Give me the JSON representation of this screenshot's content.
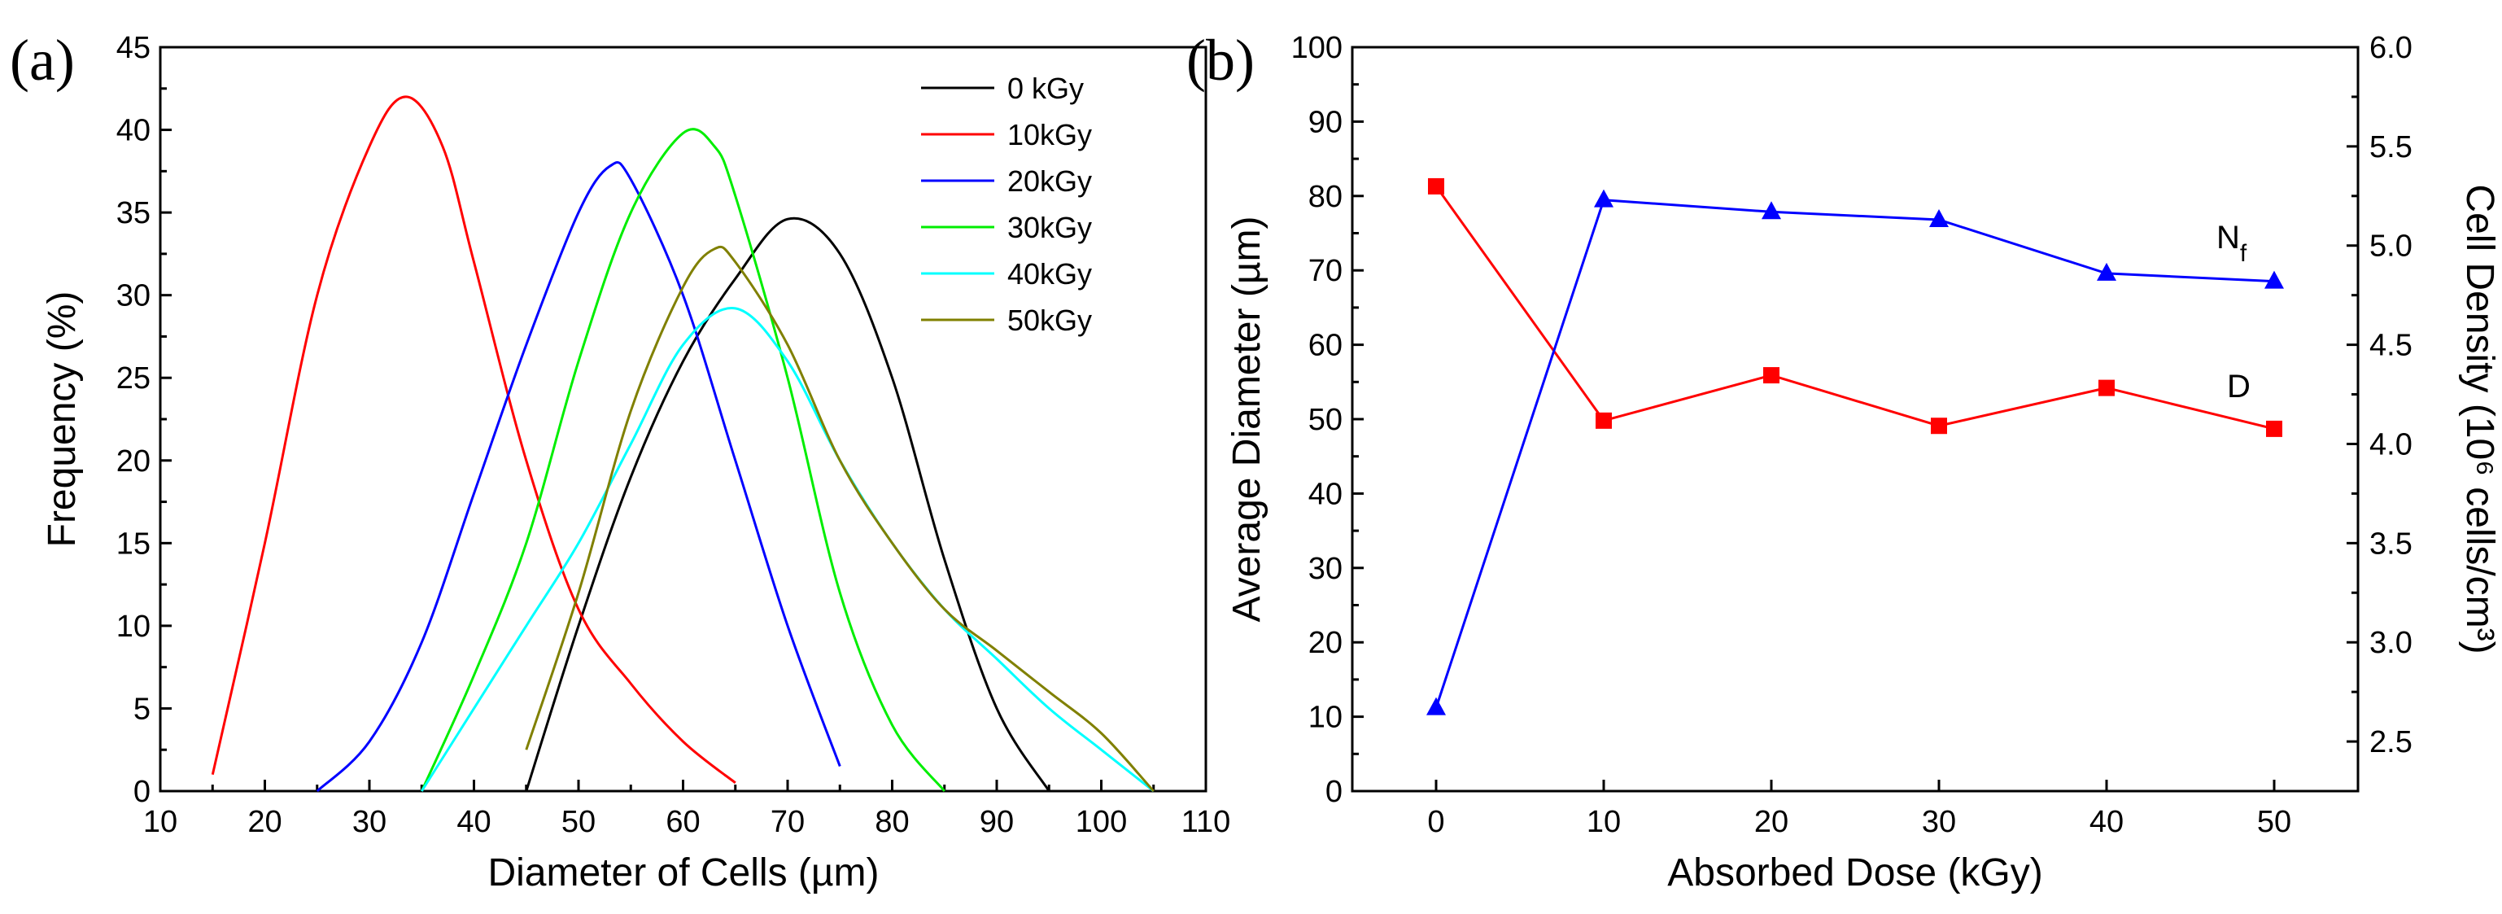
{
  "chart_data": [
    {
      "type": "line",
      "panel": "(a)",
      "xlabel": "Diameter of Cells (µm)",
      "ylabel": "Frequency (%)",
      "xlim": [
        10,
        110
      ],
      "ylim": [
        0,
        45
      ],
      "xticks": [
        "10",
        "20",
        "30",
        "40",
        "50",
        "60",
        "70",
        "80",
        "90",
        "100",
        "110"
      ],
      "yticks": [
        "0",
        "5",
        "10",
        "15",
        "20",
        "25",
        "30",
        "35",
        "40",
        "45"
      ],
      "grid": false,
      "legend_position": "top-right",
      "series": [
        {
          "name": "0 kGy",
          "color": "#000000",
          "x": [
            45,
            50,
            55,
            60,
            65,
            70,
            75,
            80,
            85,
            90,
            95
          ],
          "y": [
            0,
            10,
            19,
            26,
            31,
            34.6,
            32.5,
            25,
            14,
            5,
            0
          ]
        },
        {
          "name": "10kGy",
          "color": "#ff0000",
          "x": [
            15,
            20,
            25,
            30,
            33.5,
            37,
            40,
            45,
            50,
            55,
            60,
            65
          ],
          "y": [
            1,
            15,
            30,
            39,
            42,
            39,
            32,
            20,
            11,
            6.5,
            3,
            0.5
          ]
        },
        {
          "name": "20kGy",
          "color": "#0000ff",
          "x": [
            25,
            30,
            35,
            40,
            45,
            50,
            53,
            55,
            60,
            65,
            70,
            75
          ],
          "y": [
            0,
            3,
            9,
            18,
            27,
            35,
            37.8,
            37,
            30,
            20,
            10,
            1.5
          ]
        },
        {
          "name": "30kGy",
          "color": "#00ee00",
          "x": [
            35,
            40,
            45,
            50,
            55,
            60,
            63,
            65,
            70,
            75,
            80,
            85
          ],
          "y": [
            0,
            7,
            15,
            26,
            35,
            39.8,
            39,
            36,
            25,
            12,
            4,
            0
          ]
        },
        {
          "name": "40kGy",
          "color": "#00ffff",
          "x": [
            35,
            40,
            45,
            50,
            55,
            60,
            65,
            70,
            75,
            80,
            85,
            90,
            95,
            100,
            105
          ],
          "y": [
            0,
            5,
            10,
            15,
            21,
            27,
            29.2,
            26,
            20,
            15,
            11,
            8,
            5,
            2.5,
            0
          ]
        },
        {
          "name": "50kGy",
          "color": "#808000",
          "x": [
            45,
            50,
            55,
            60,
            63,
            65,
            70,
            75,
            80,
            85,
            90,
            95,
            100,
            105
          ],
          "y": [
            2.5,
            12,
            23,
            30.5,
            32.8,
            32,
            27,
            20,
            15,
            11,
            8.5,
            6,
            3.5,
            0
          ]
        }
      ]
    },
    {
      "type": "line",
      "panel": "(b)",
      "xlabel": "Absorbed Dose (kGy)",
      "ylabel": "Average Diameter (µm)",
      "y2label": "Cell Density (10⁶ cells/cm³)",
      "xlim": [
        -5,
        55
      ],
      "ylim": [
        0,
        100
      ],
      "y2lim": [
        2.25,
        6.0
      ],
      "xticks": [
        "0",
        "10",
        "20",
        "30",
        "40",
        "50"
      ],
      "yticks": [
        "0",
        "10",
        "20",
        "30",
        "40",
        "50",
        "60",
        "70",
        "80",
        "90",
        "100"
      ],
      "y2ticks": [
        "2.5",
        "3.0",
        "3.5",
        "4.0",
        "4.5",
        "5.0",
        "5.5",
        "6.0"
      ],
      "grid": false,
      "categories": [
        0,
        10,
        20,
        30,
        40,
        50
      ],
      "series": [
        {
          "name": "D",
          "axis": "left",
          "marker": "square",
          "color": "#ff0000",
          "values": [
            81.3,
            49.8,
            55.9,
            49.1,
            54.2,
            48.7
          ]
        },
        {
          "name": "N",
          "subscript": "f",
          "axis": "right",
          "marker": "triangle",
          "color": "#0000ff",
          "values": [
            2.67,
            5.23,
            5.17,
            5.13,
            4.86,
            4.82
          ]
        }
      ]
    }
  ]
}
